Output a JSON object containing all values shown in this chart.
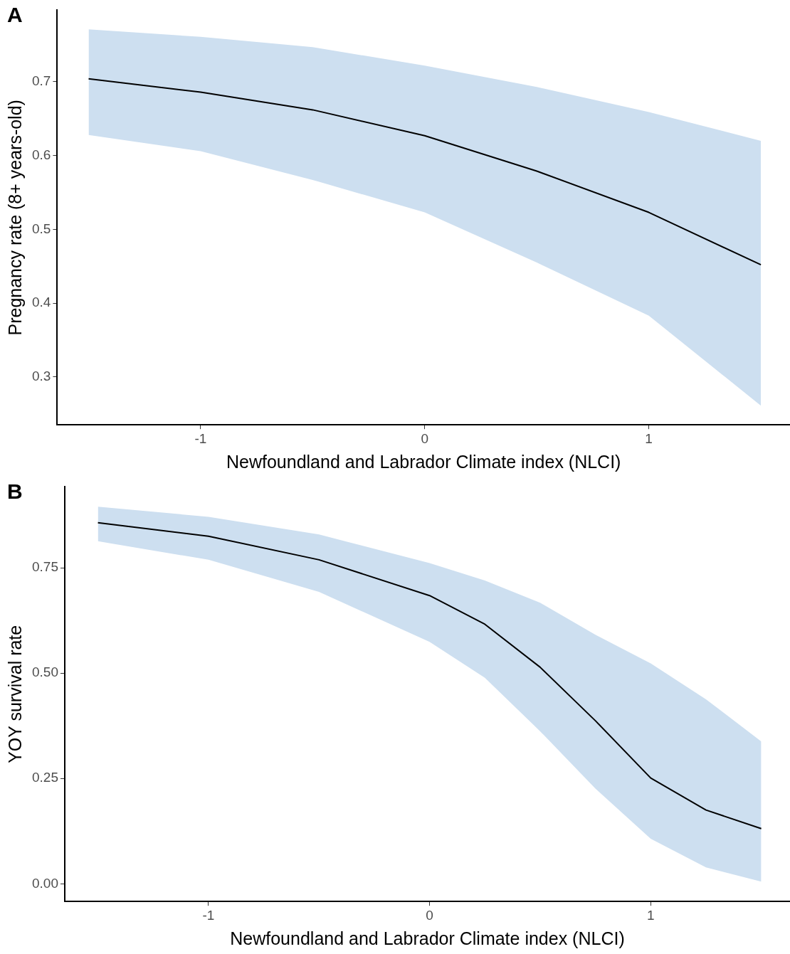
{
  "chart_data": [
    {
      "type": "line",
      "xlabel": "Newfoundland and Labrador Climate index (NLCI)",
      "ylabel": "Pregnancy rate (8+ years-old)",
      "annotations": [
        "A"
      ],
      "x": [
        -1.5,
        -1,
        -0.5,
        0,
        0.5,
        1,
        1.5
      ],
      "series": [
        {
          "color": "#000000",
          "values": [
            0.704,
            0.686,
            0.662,
            0.627,
            0.579,
            0.523,
            0.452
          ],
          "lower": [
            0.628,
            0.606,
            0.567,
            0.523,
            0.455,
            0.383,
            0.261
          ],
          "upper": [
            0.771,
            0.761,
            0.747,
            0.722,
            0.693,
            0.659,
            0.62
          ]
        }
      ],
      "xlim": [
        -1.64,
        1.63
      ],
      "ylim": [
        0.235,
        0.797
      ],
      "xticks": [
        -1,
        0,
        1
      ],
      "yticks": [
        0.3,
        0.4,
        0.5,
        0.6,
        0.7
      ],
      "grid": false,
      "legend": false
    },
    {
      "type": "line",
      "xlabel": "Newfoundland and Labrador Climate index (NLCI)",
      "ylabel": "YOY survival rate",
      "annotations": [
        "B"
      ],
      "x": [
        -1.5,
        -1,
        -0.5,
        0,
        0.25,
        0.5,
        0.75,
        1,
        1.25,
        1.5
      ],
      "series": [
        {
          "color": "#000000",
          "values": [
            0.857,
            0.825,
            0.769,
            0.684,
            0.616,
            0.514,
            0.387,
            0.251,
            0.175,
            0.131
          ],
          "lower": [
            0.813,
            0.769,
            0.693,
            0.574,
            0.489,
            0.362,
            0.226,
            0.107,
            0.039,
            0.005
          ],
          "upper": [
            0.895,
            0.871,
            0.829,
            0.761,
            0.72,
            0.667,
            0.591,
            0.523,
            0.438,
            0.338
          ]
        }
      ],
      "xlim": [
        -1.65,
        1.63
      ],
      "ylim": [
        -0.042,
        0.942
      ],
      "xticks": [
        -1,
        0,
        1
      ],
      "yticks": [
        {
          "value": 0,
          "label": "0.00"
        },
        {
          "value": 0.25,
          "label": "0.25"
        },
        {
          "value": 0.5,
          "label": "0.50"
        },
        {
          "value": 0.75,
          "label": "0.75"
        }
      ],
      "grid": false,
      "legend": false
    }
  ]
}
